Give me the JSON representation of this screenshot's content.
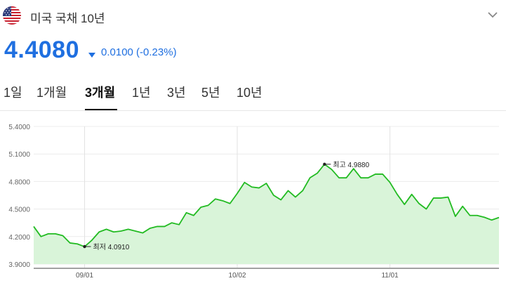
{
  "header": {
    "title": "미국 국채 10년",
    "flag_icon": "us-flag-icon",
    "expand_icon": "chevron-down-icon"
  },
  "quote": {
    "price": "4.4080",
    "direction_icon": "triangle-down-icon",
    "change": "0.0100 (-0.23%)",
    "color": "#1f6fe0"
  },
  "tabs": [
    {
      "label": "1일",
      "active": false
    },
    {
      "label": "1개월",
      "active": false
    },
    {
      "label": "3개월",
      "active": true
    },
    {
      "label": "1년",
      "active": false
    },
    {
      "label": "3년",
      "active": false
    },
    {
      "label": "5년",
      "active": false
    },
    {
      "label": "10년",
      "active": false
    }
  ],
  "chart_data": {
    "type": "area",
    "y_ticks": [
      "5.4000",
      "5.1000",
      "4.8000",
      "4.5000",
      "4.2000",
      "3.9000"
    ],
    "ylim": [
      3.9,
      5.4
    ],
    "x_ticks": [
      {
        "label": "09/01",
        "index": 7
      },
      {
        "label": "10/02",
        "index": 28
      },
      {
        "label": "11/01",
        "index": 49
      }
    ],
    "grid": true,
    "line_color": "#22bb22",
    "fill_color": "#d9f4d9",
    "values": [
      4.31,
      4.2,
      4.23,
      4.23,
      4.21,
      4.13,
      4.12,
      4.09,
      4.16,
      4.25,
      4.28,
      4.25,
      4.26,
      4.28,
      4.26,
      4.24,
      4.29,
      4.31,
      4.31,
      4.35,
      4.33,
      4.46,
      4.43,
      4.52,
      4.54,
      4.61,
      4.59,
      4.56,
      4.67,
      4.79,
      4.74,
      4.73,
      4.78,
      4.65,
      4.6,
      4.7,
      4.63,
      4.7,
      4.84,
      4.89,
      4.988,
      4.93,
      4.84,
      4.84,
      4.94,
      4.84,
      4.84,
      4.88,
      4.88,
      4.79,
      4.66,
      4.55,
      4.66,
      4.56,
      4.5,
      4.62,
      4.62,
      4.63,
      4.42,
      4.53,
      4.43,
      4.43,
      4.41,
      4.38,
      4.408
    ],
    "annotations": [
      {
        "label": "최고 4.9880",
        "index": 40,
        "value": 4.988
      },
      {
        "label": "최저 4.0910",
        "index": 7,
        "value": 4.091
      }
    ]
  }
}
